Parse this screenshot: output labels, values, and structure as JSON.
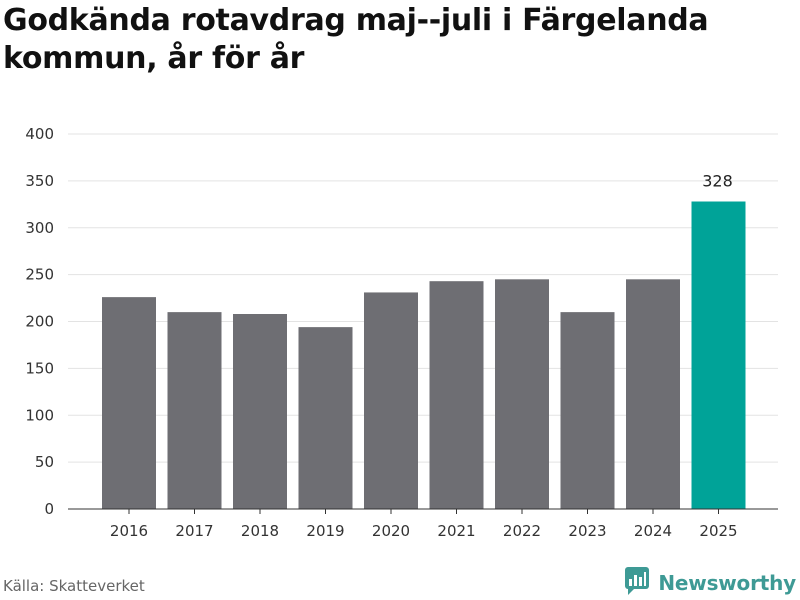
{
  "title": "Godkända rotavdrag maj--juli i Färgelanda kommun, år för år",
  "source": "Källa: Skatteverket",
  "brand": {
    "name": "Newsworthy",
    "icon": "newsworthy-logo-icon"
  },
  "colors": {
    "default_bar": "#6e6e73",
    "highlight_bar": "#00a398",
    "grid": "#e3e3e3",
    "brand": "#3e9a95"
  },
  "chart_data": {
    "type": "bar",
    "title": "Godkända rotavdrag maj--juli i Färgelanda kommun, år för år",
    "xlabel": "",
    "ylabel": "",
    "categories": [
      "2016",
      "2017",
      "2018",
      "2019",
      "2020",
      "2021",
      "2022",
      "2023",
      "2024",
      "2025"
    ],
    "values": [
      226,
      210,
      208,
      194,
      231,
      243,
      245,
      210,
      245,
      328
    ],
    "highlight_index": 9,
    "data_labels": {
      "9": "328"
    },
    "ylim": [
      0,
      400
    ],
    "yticks": [
      0,
      50,
      100,
      150,
      200,
      250,
      300,
      350,
      400
    ],
    "grid": true,
    "legend": "none"
  }
}
